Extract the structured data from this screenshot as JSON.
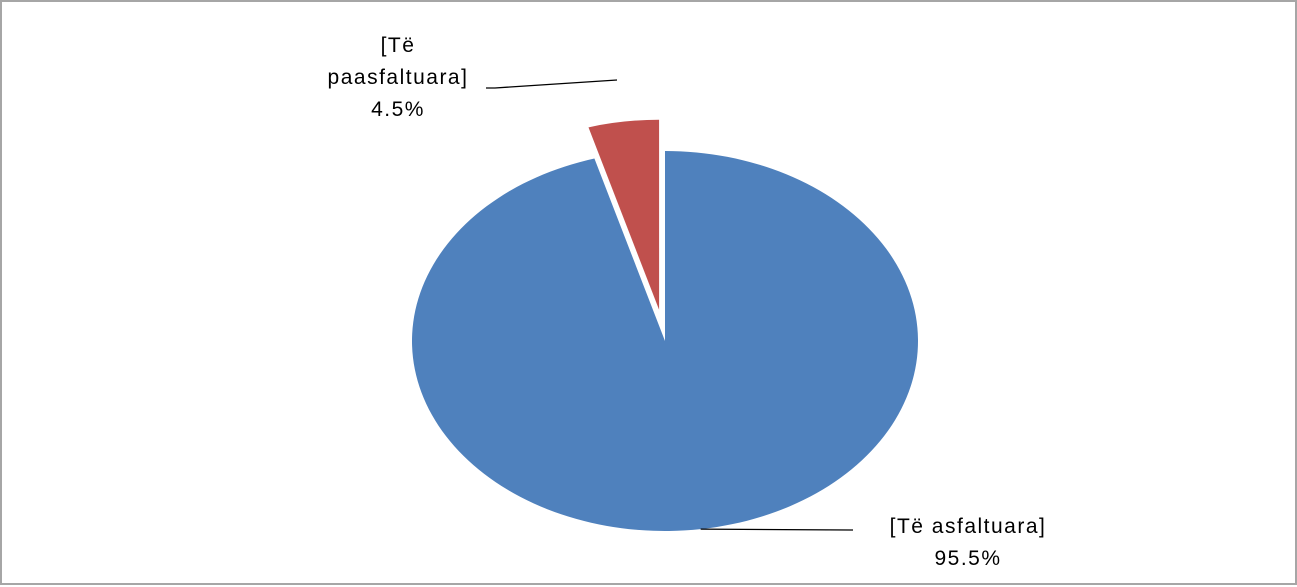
{
  "chart_data": {
    "type": "pie",
    "title": "",
    "series": [
      {
        "values": [
          95.5,
          4.5
        ],
        "categories": [
          "[Të asfaltuara]",
          "[Të paasfaltuara]"
        ]
      }
    ],
    "slices": [
      {
        "category": "[Të asfaltuara]",
        "value": 95.5,
        "label_lines": [
          "[Të asfaltuara]"
        ],
        "value_label": "95.5%",
        "color": "#4f81bd",
        "exploded": false
      },
      {
        "category": "[Të paasfaltuara]",
        "value": 4.5,
        "label_lines": [
          "[Të",
          "paasfaltuara]"
        ],
        "value_label": "4.5%",
        "color": "#c0504d",
        "exploded": true
      }
    ],
    "legend": "none",
    "label_type": "category-and-percent"
  }
}
